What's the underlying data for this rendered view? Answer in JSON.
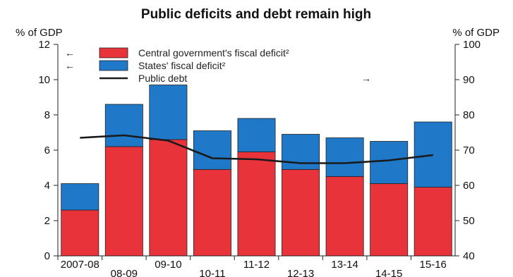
{
  "chart_data": {
    "type": "bar",
    "title": "Public deficits and debt remain high",
    "y_left_label": "% of GDP",
    "y_right_label": "% of GDP",
    "y_left_lim": [
      0,
      12
    ],
    "y_right_lim": [
      40,
      100
    ],
    "y_left_ticks": [
      "0",
      "2",
      "4",
      "6",
      "8",
      "10",
      "12"
    ],
    "y_right_ticks": [
      "40",
      "50",
      "60",
      "70",
      "80",
      "90",
      "100"
    ],
    "categories": [
      "2007-08",
      "08-09",
      "09-10",
      "10-11",
      "11-12",
      "12-13",
      "13-14",
      "14-15",
      "15-16"
    ],
    "stacked": true,
    "series": [
      {
        "name": "Central government's fiscal deficit²",
        "axis": "left",
        "color": "#e8333b",
        "values": [
          2.6,
          6.2,
          6.6,
          4.9,
          5.9,
          4.9,
          4.5,
          4.1,
          3.9
        ]
      },
      {
        "name": "States' fiscal deficit²",
        "axis": "left",
        "color": "#1f78c8",
        "values": [
          1.5,
          2.4,
          3.1,
          2.2,
          1.9,
          2.0,
          2.2,
          2.4,
          3.7
        ]
      },
      {
        "name": "Public debt",
        "axis": "right",
        "type": "line",
        "color": "#1a1a1a",
        "values": [
          73.5,
          74.2,
          72.7,
          67.7,
          67.4,
          66.3,
          66.3,
          67.1,
          68.6
        ]
      }
    ],
    "legend": [
      {
        "arrow": "←",
        "label": "Central government's fiscal deficit²",
        "color": "#e8333b",
        "kind": "box"
      },
      {
        "arrow": "←",
        "label": "States' fiscal deficit²",
        "color": "#1f78c8",
        "kind": "box"
      },
      {
        "arrow": "→",
        "label": "Public debt",
        "color": "#1a1a1a",
        "kind": "line"
      }
    ],
    "legend_placement": "top-left",
    "grid": false
  }
}
